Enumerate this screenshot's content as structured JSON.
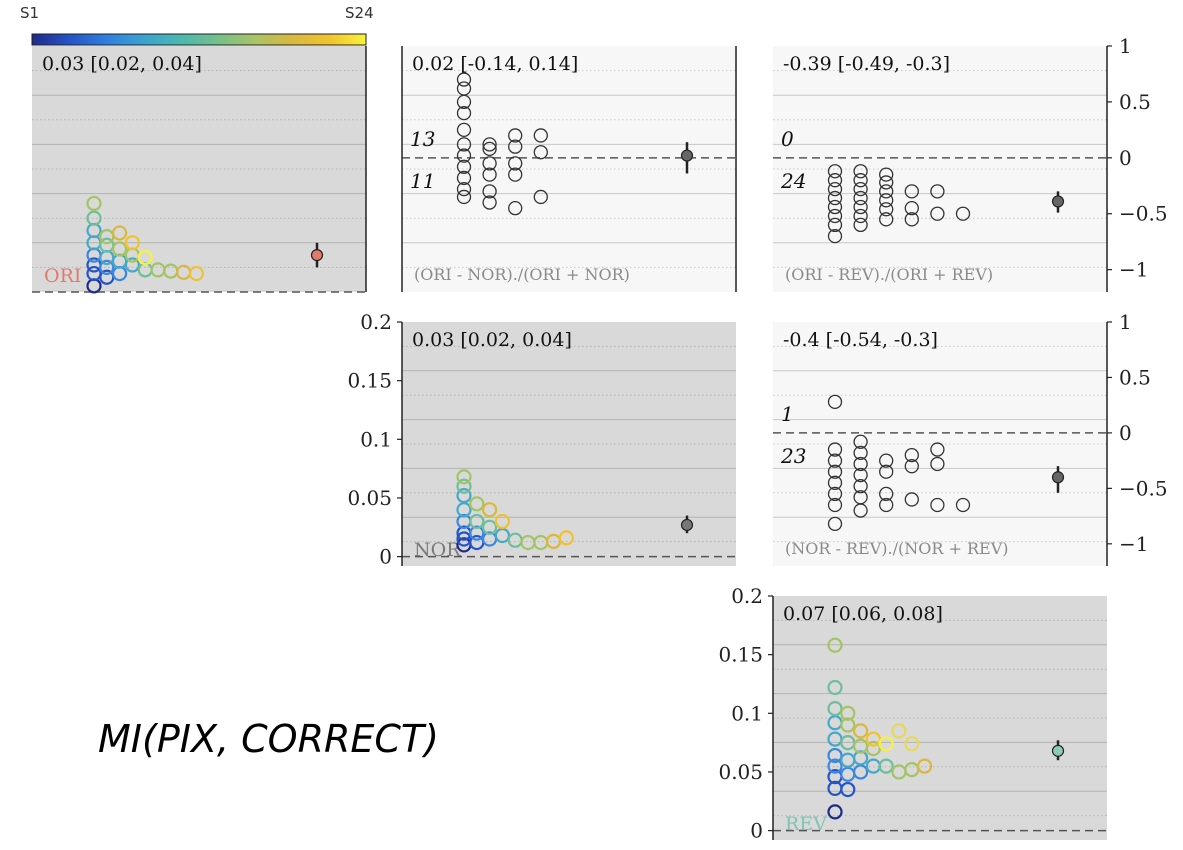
{
  "colorbar": {
    "min_label": "S1",
    "max_label": "S24",
    "colors": [
      "#1f2a8a",
      "#2453c8",
      "#2f7fe0",
      "#3aa3d0",
      "#4bb8b0",
      "#74c08a",
      "#a8c464",
      "#d8b93f",
      "#f2c22c",
      "#f8f23a"
    ]
  },
  "caption": "MI(PIX, CORRECT)",
  "chart_data": [
    {
      "type": "scatter",
      "panel": "ORI",
      "label": "ORI",
      "label_color": "#e07a6a",
      "stat_text": "0.03 [0.02, 0.04]",
      "ylim": [
        0,
        0.2
      ],
      "background": "shaded",
      "columns": [
        [
          0.005,
          0.015,
          0.022,
          0.03,
          0.04,
          0.05,
          0.06,
          0.072
        ],
        [
          0.012,
          0.02,
          0.028,
          0.038,
          0.045
        ],
        [
          0.015,
          0.025,
          0.035,
          0.048
        ],
        [
          0.022,
          0.03,
          0.04
        ],
        [
          0.018,
          0.028
        ],
        [
          0.018
        ],
        [
          0.017
        ],
        [
          0.016
        ],
        [
          0.015
        ]
      ],
      "summary": {
        "mean": 0.03,
        "low": 0.02,
        "high": 0.04,
        "color": "#e07a6a"
      }
    },
    {
      "type": "scatter",
      "panel": "ORI-NOR",
      "label": "(ORI - NOR)./(ORI + NOR)",
      "stat_text": "0.02 [-0.14, 0.14]",
      "ylim": [
        -1.2,
        1.0
      ],
      "count_above": "13",
      "count_below": "11",
      "columns": [
        [
          0.7,
          0.62,
          0.5,
          0.4,
          0.25,
          0.12,
          0.02,
          -0.08,
          -0.18,
          -0.28,
          -0.35
        ],
        [
          0.12,
          0.08,
          -0.05,
          -0.15,
          -0.3,
          -0.4
        ],
        [
          0.2,
          0.1,
          -0.05,
          -0.15,
          -0.45
        ],
        [
          0.2,
          0.05,
          -0.35
        ]
      ],
      "summary": {
        "mean": 0.02,
        "low": -0.14,
        "high": 0.14,
        "color": "#666666"
      }
    },
    {
      "type": "scatter",
      "panel": "ORI-REV",
      "label": "(ORI - REV)./(ORI + REV)",
      "stat_text": "-0.39 [-0.49, -0.3]",
      "ylim": [
        -1.2,
        1.0
      ],
      "yticks": [
        1,
        0.5,
        0,
        -0.5,
        -1
      ],
      "count_above": "0",
      "count_below": "24",
      "columns": [
        [
          -0.12,
          -0.2,
          -0.28,
          -0.36,
          -0.44,
          -0.52,
          -0.6,
          -0.7
        ],
        [
          -0.12,
          -0.2,
          -0.28,
          -0.36,
          -0.44,
          -0.52,
          -0.6
        ],
        [
          -0.15,
          -0.22,
          -0.3,
          -0.38,
          -0.46,
          -0.55
        ],
        [
          -0.3,
          -0.45,
          -0.55
        ],
        [
          -0.3,
          -0.5
        ],
        [
          -0.5
        ]
      ],
      "summary": {
        "mean": -0.39,
        "low": -0.49,
        "high": -0.3,
        "color": "#666666"
      }
    },
    {
      "type": "scatter",
      "panel": "NOR",
      "label": "NOR",
      "label_color": "#7a7a7a",
      "stat_text": "0.03 [0.02, 0.04]",
      "ylim": [
        -0.008,
        0.2
      ],
      "yticks": [
        0.2,
        0.15,
        0.1,
        0.05,
        0
      ],
      "background": "shaded",
      "columns": [
        [
          0.01,
          0.015,
          0.02,
          0.03,
          0.04,
          0.052,
          0.06,
          0.068
        ],
        [
          0.012,
          0.02,
          0.03,
          0.045
        ],
        [
          0.015,
          0.025,
          0.04
        ],
        [
          0.018,
          0.03
        ],
        [
          0.014
        ],
        [
          0.012
        ],
        [
          0.012
        ],
        [
          0.013
        ],
        [
          0.016
        ]
      ],
      "summary": {
        "mean": 0.027,
        "low": 0.02,
        "high": 0.035,
        "color": "#777777"
      }
    },
    {
      "type": "scatter",
      "panel": "NOR-REV",
      "label": "(NOR - REV)./(NOR + REV)",
      "stat_text": "-0.4 [-0.54, -0.3]",
      "ylim": [
        -1.2,
        1.0
      ],
      "yticks": [
        1,
        0.5,
        0,
        -0.5,
        -1
      ],
      "count_above": "1",
      "count_below": "23",
      "columns": [
        [
          0.28,
          -0.15,
          -0.25,
          -0.35,
          -0.45,
          -0.55,
          -0.65,
          -0.82
        ],
        [
          -0.08,
          -0.18,
          -0.28,
          -0.38,
          -0.48,
          -0.58,
          -0.7
        ],
        [
          -0.25,
          -0.35,
          -0.55,
          -0.65
        ],
        [
          -0.2,
          -0.3,
          -0.6
        ],
        [
          -0.15,
          -0.28,
          -0.65
        ],
        [
          -0.65
        ]
      ],
      "summary": {
        "mean": -0.4,
        "low": -0.54,
        "high": -0.3,
        "color": "#666666"
      }
    },
    {
      "type": "scatter",
      "panel": "REV",
      "label": "REV",
      "label_color": "#7ec4b0",
      "stat_text": "0.07 [0.06, 0.08]",
      "ylim": [
        -0.008,
        0.2
      ],
      "yticks": [
        0.2,
        0.15,
        0.1,
        0.05,
        0
      ],
      "background": "shaded",
      "columns": [
        [
          0.016,
          0.036,
          0.046,
          0.055,
          0.064,
          0.078,
          0.092,
          0.104,
          0.122,
          0.158
        ],
        [
          0.035,
          0.048,
          0.06,
          0.075,
          0.09,
          0.1
        ],
        [
          0.05,
          0.062,
          0.072,
          0.085
        ],
        [
          0.055,
          0.07,
          0.078
        ],
        [
          0.055,
          0.074
        ],
        [
          0.05,
          0.085
        ],
        [
          0.052,
          0.074
        ],
        [
          0.055
        ]
      ],
      "summary": {
        "mean": 0.068,
        "low": 0.06,
        "high": 0.077,
        "color": "#8ccbb6"
      }
    }
  ]
}
